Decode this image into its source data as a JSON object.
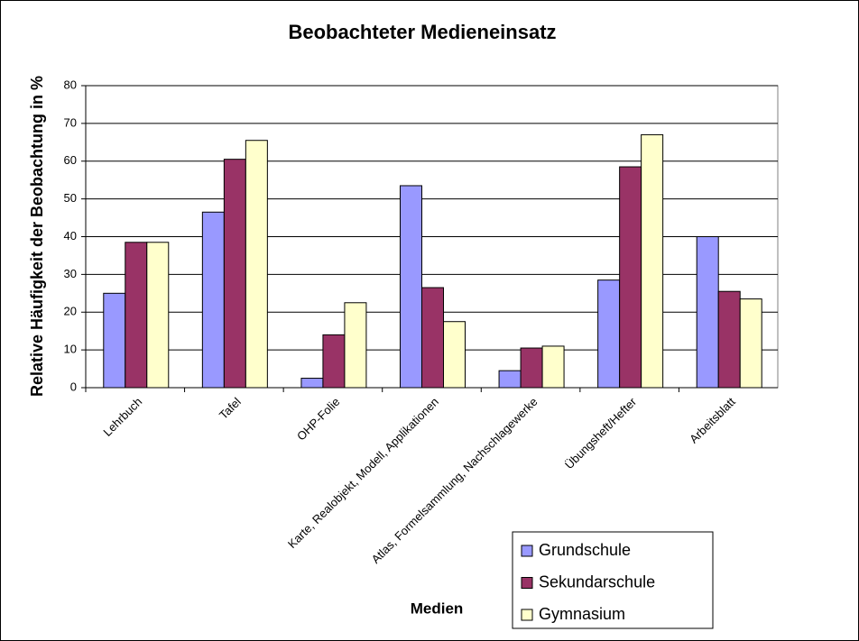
{
  "chart_data": {
    "type": "bar",
    "title": "Beobachteter Medieneinsatz",
    "x_label": "Medien",
    "y_label": "Relative Häufigkeit der Beobachtung in %",
    "categories": [
      "Lehrbuch",
      "Tafel",
      "OHP-Folie",
      "Karte, Realobjekt, Modell, Applikationen",
      "Atlas, Formelsammlung, Nachschlagewerke",
      "Übungsheft/Hefter",
      "Arbeitsblatt"
    ],
    "series": [
      {
        "name": "Grundschule",
        "color": "#9999ff",
        "values": [
          25,
          46.5,
          2.5,
          53.5,
          4.5,
          28.5,
          40
        ]
      },
      {
        "name": "Sekundarschule",
        "color": "#993366",
        "values": [
          38.5,
          60.5,
          14,
          26.5,
          10.5,
          58.5,
          25.5
        ]
      },
      {
        "name": "Gymnasium",
        "color": "#ffffcc",
        "values": [
          38.5,
          65.5,
          22.5,
          17.5,
          11,
          67,
          23.5
        ]
      }
    ],
    "ylim": [
      0,
      80
    ],
    "yticks": [
      0,
      10,
      20,
      30,
      40,
      50,
      60,
      70,
      80
    ],
    "grid": true,
    "legend": "lower right"
  }
}
